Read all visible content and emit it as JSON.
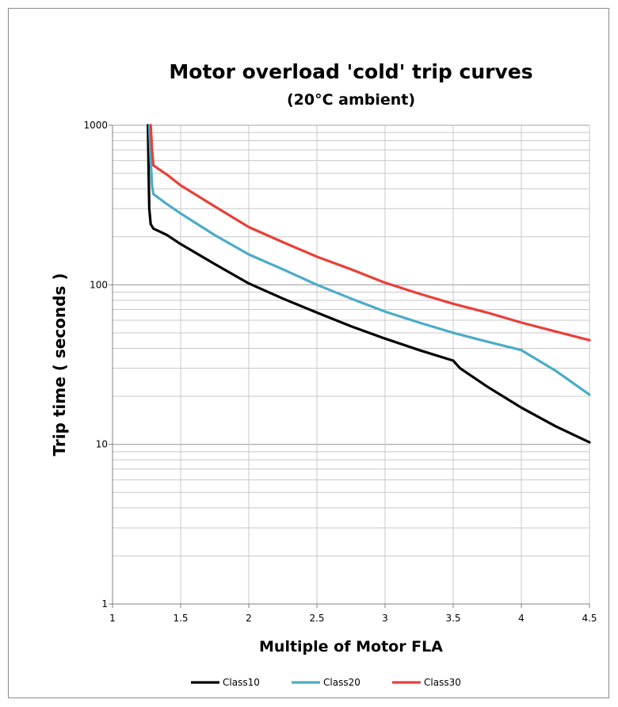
{
  "chart_data": {
    "type": "line",
    "title": "Motor overload 'cold' trip curves",
    "subtitle": "(20°C ambient)",
    "xlabel": "Multiple of Motor FLA",
    "ylabel": "Trip time ( seconds )",
    "xlim": [
      1,
      4.5
    ],
    "ylim": [
      1,
      1000
    ],
    "yscale": "log",
    "x_ticks": [
      "1",
      "1.5",
      "2",
      "2.5",
      "3",
      "3.5",
      "4",
      "4.5"
    ],
    "y_ticks": [
      "1",
      "10",
      "100",
      "1000"
    ],
    "grid": true,
    "legend_position": "bottom",
    "series": [
      {
        "name": "Class10",
        "color": "#000000",
        "points": [
          [
            1.26,
            1000
          ],
          [
            1.265,
            500
          ],
          [
            1.27,
            300
          ],
          [
            1.28,
            240
          ],
          [
            1.3,
            225
          ],
          [
            1.35,
            215
          ],
          [
            1.4,
            205
          ],
          [
            1.5,
            180
          ],
          [
            1.75,
            135
          ],
          [
            2,
            102
          ],
          [
            2.25,
            82
          ],
          [
            2.5,
            67
          ],
          [
            2.75,
            55
          ],
          [
            3,
            46
          ],
          [
            3.25,
            39
          ],
          [
            3.5,
            33.5
          ],
          [
            3.55,
            30
          ],
          [
            3.75,
            23
          ],
          [
            4,
            17
          ],
          [
            4.25,
            13
          ],
          [
            4.5,
            10.3
          ]
        ]
      },
      {
        "name": "Class20",
        "color": "#4bacc6",
        "points": [
          [
            1.27,
            1000
          ],
          [
            1.28,
            600
          ],
          [
            1.29,
            420
          ],
          [
            1.3,
            370
          ],
          [
            1.4,
            320
          ],
          [
            1.5,
            280
          ],
          [
            1.75,
            205
          ],
          [
            2,
            155
          ],
          [
            2.25,
            125
          ],
          [
            2.5,
            100
          ],
          [
            2.75,
            82
          ],
          [
            3,
            68
          ],
          [
            3.25,
            58
          ],
          [
            3.5,
            50
          ],
          [
            3.75,
            44
          ],
          [
            4,
            39
          ],
          [
            4.25,
            29
          ],
          [
            4.5,
            20.5
          ]
        ]
      },
      {
        "name": "Class30",
        "color": "#e8403a",
        "points": [
          [
            1.28,
            1000
          ],
          [
            1.29,
            700
          ],
          [
            1.3,
            560
          ],
          [
            1.4,
            490
          ],
          [
            1.5,
            420
          ],
          [
            1.75,
            310
          ],
          [
            2,
            230
          ],
          [
            2.25,
            185
          ],
          [
            2.5,
            150
          ],
          [
            2.75,
            125
          ],
          [
            3,
            103
          ],
          [
            3.25,
            88
          ],
          [
            3.5,
            76
          ],
          [
            3.75,
            67
          ],
          [
            4,
            58
          ],
          [
            4.25,
            51
          ],
          [
            4.5,
            45
          ]
        ]
      }
    ]
  }
}
